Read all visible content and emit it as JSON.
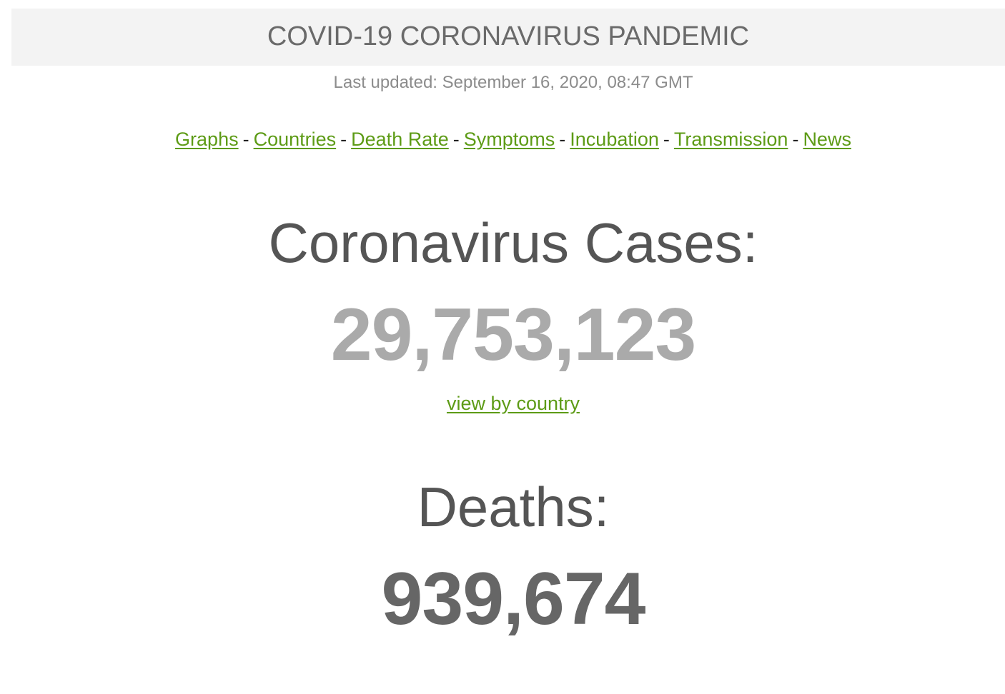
{
  "header": {
    "title": "COVID-19 CORONAVIRUS PANDEMIC",
    "last_updated": "Last updated: September 16, 2020, 08:47 GMT"
  },
  "nav": {
    "links": [
      "Graphs",
      "Countries",
      "Death Rate",
      "Symptoms",
      "Incubation",
      "Transmission",
      "News"
    ],
    "separator": "-"
  },
  "cases": {
    "label": "Coronavirus Cases:",
    "value": "29,753,123",
    "link": "view by country"
  },
  "deaths": {
    "label": "Deaths:",
    "value": "939,674"
  },
  "colors": {
    "link": "#5d9b16",
    "banner_bg": "#f3f3f3",
    "cases_number": "#aaaaaa",
    "deaths_number": "#666666"
  }
}
